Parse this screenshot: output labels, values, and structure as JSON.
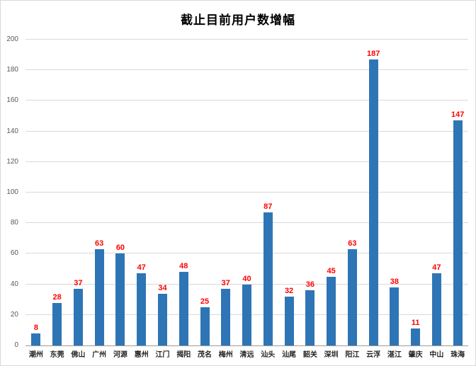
{
  "colors": {
    "bar": "#2E75B6",
    "value_label": "#FF0000",
    "grid": "#D9D9D9",
    "axis_text": "#595959",
    "title_text": "#000000"
  },
  "chart_data": {
    "type": "bar",
    "title": "截止目前用户数增幅",
    "categories": [
      "潮州",
      "东莞",
      "佛山",
      "广州",
      "河源",
      "惠州",
      "江门",
      "揭阳",
      "茂名",
      "梅州",
      "清远",
      "汕头",
      "汕尾",
      "韶关",
      "深圳",
      "阳江",
      "云浮",
      "湛江",
      "肇庆",
      "中山",
      "珠海"
    ],
    "values": [
      8,
      28,
      37,
      63,
      60,
      47,
      34,
      48,
      25,
      37,
      40,
      87,
      32,
      36,
      45,
      63,
      187,
      38,
      11,
      47,
      147
    ],
    "xlabel": "",
    "ylabel": "",
    "ylim": [
      0,
      200
    ],
    "ytick_step": 20,
    "grid": true,
    "legend": false,
    "value_labels_shown": true
  }
}
